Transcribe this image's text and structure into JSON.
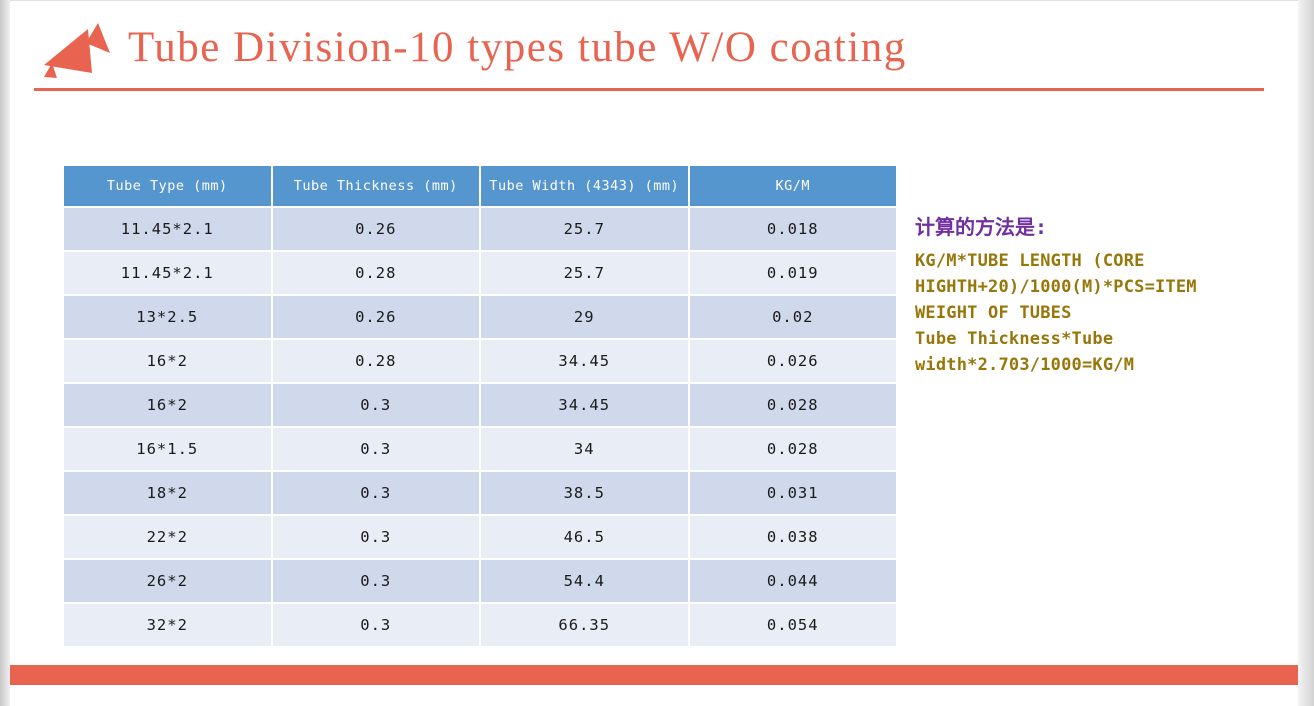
{
  "slide": {
    "title": "Tube Division-10 types tube W/O coating"
  },
  "colors": {
    "accent_coral": "#E96450",
    "table_header_bg": "#5596CE",
    "table_header_text": "#FFFFFF",
    "row_dark": "#CFD9EB",
    "row_light": "#E9EDF6",
    "note_heading_purple": "#7030A0",
    "note_text_olive": "#97770A"
  },
  "table": {
    "columns": [
      "Tube Type (mm)",
      "Tube Thickness (mm)",
      "Tube Width (4343) (mm)",
      "KG/M"
    ],
    "rows": [
      [
        "11.45*2.1",
        "0.26",
        "25.7",
        "0.018"
      ],
      [
        "11.45*2.1",
        "0.28",
        "25.7",
        "0.019"
      ],
      [
        "13*2.5",
        "0.26",
        "29",
        "0.02"
      ],
      [
        "16*2",
        "0.28",
        "34.45",
        "0.026"
      ],
      [
        "16*2",
        "0.3",
        "34.45",
        "0.028"
      ],
      [
        "16*1.5",
        "0.3",
        "34",
        "0.028"
      ],
      [
        "18*2",
        "0.3",
        "38.5",
        "0.031"
      ],
      [
        "22*2",
        "0.3",
        "46.5",
        "0.038"
      ],
      [
        "26*2",
        "0.3",
        "54.4",
        "0.044"
      ],
      [
        "32*2",
        "0.3",
        "66.35",
        "0.054"
      ]
    ]
  },
  "note": {
    "heading": "计算的方法是:",
    "lines": [
      "KG/M*TUBE LENGTH (CORE",
      "HIGHTH+20)/1000(M)*PCS=ITEM",
      "WEIGHT OF TUBES",
      "Tube Thickness*Tube",
      "width*2.703/1000=KG/M"
    ]
  }
}
